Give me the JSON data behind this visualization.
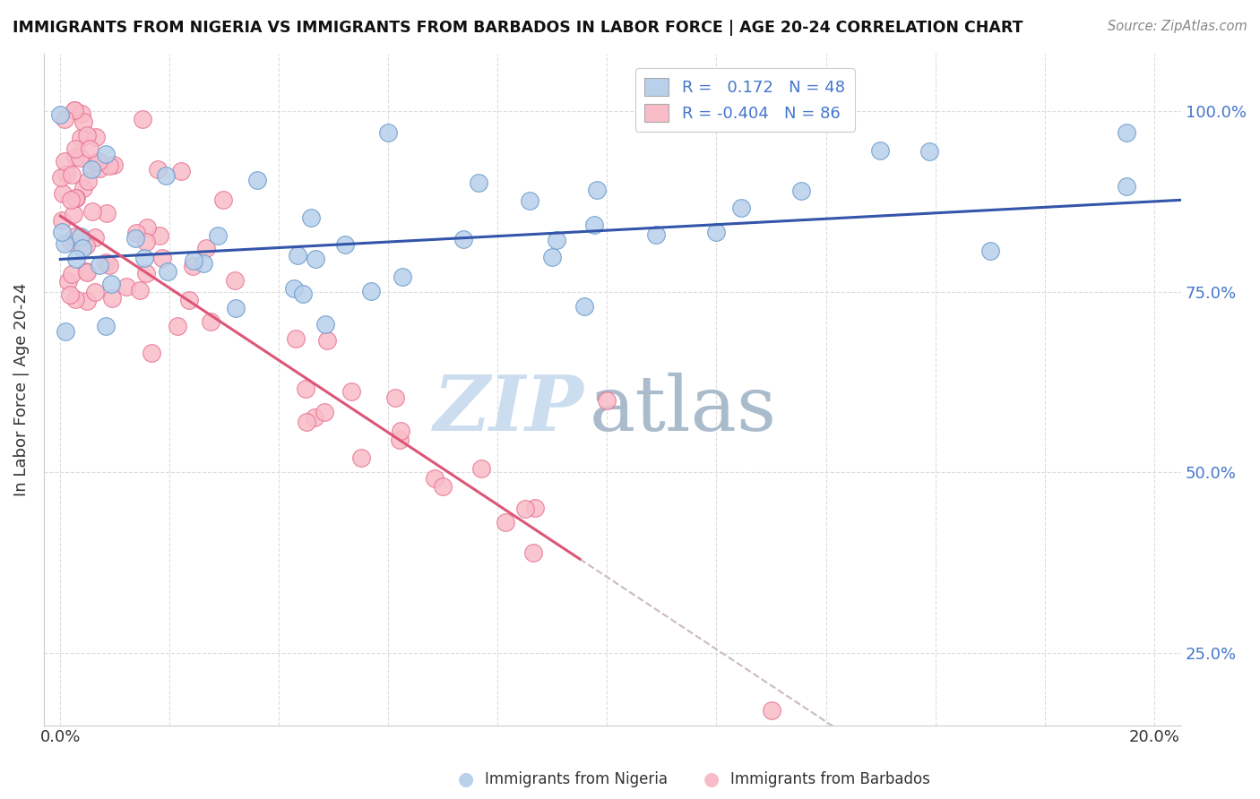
{
  "title": "IMMIGRANTS FROM NIGERIA VS IMMIGRANTS FROM BARBADOS IN LABOR FORCE | AGE 20-24 CORRELATION CHART",
  "source": "Source: ZipAtlas.com",
  "ylabel": "In Labor Force | Age 20-24",
  "xlim": [
    0.0,
    0.205
  ],
  "ylim": [
    0.15,
    1.08
  ],
  "ytick_labels": [
    "25.0%",
    "50.0%",
    "75.0%",
    "100.0%"
  ],
  "ytick_values": [
    0.25,
    0.5,
    0.75,
    1.0
  ],
  "xtick_labels": [
    "0.0%",
    "",
    "",
    "",
    "",
    "",
    "",
    "",
    "",
    "",
    "20.0%"
  ],
  "xtick_values": [
    0.0,
    0.02,
    0.04,
    0.06,
    0.08,
    0.1,
    0.12,
    0.14,
    0.16,
    0.18,
    0.2
  ],
  "nigeria_fill_color": "#b8d0ea",
  "nigeria_edge_color": "#6699cc",
  "barbados_fill_color": "#f8bcc8",
  "barbados_edge_color": "#e87090",
  "nigeria_R": 0.172,
  "nigeria_N": 48,
  "barbados_R": -0.404,
  "barbados_N": 86,
  "nigeria_line_color": "#3355aa",
  "barbados_line_color": "#dd5577",
  "dashed_line_color": "#ccbbbb",
  "watermark_zip_color": "#ccddef",
  "watermark_atlas_color": "#aabbcc"
}
